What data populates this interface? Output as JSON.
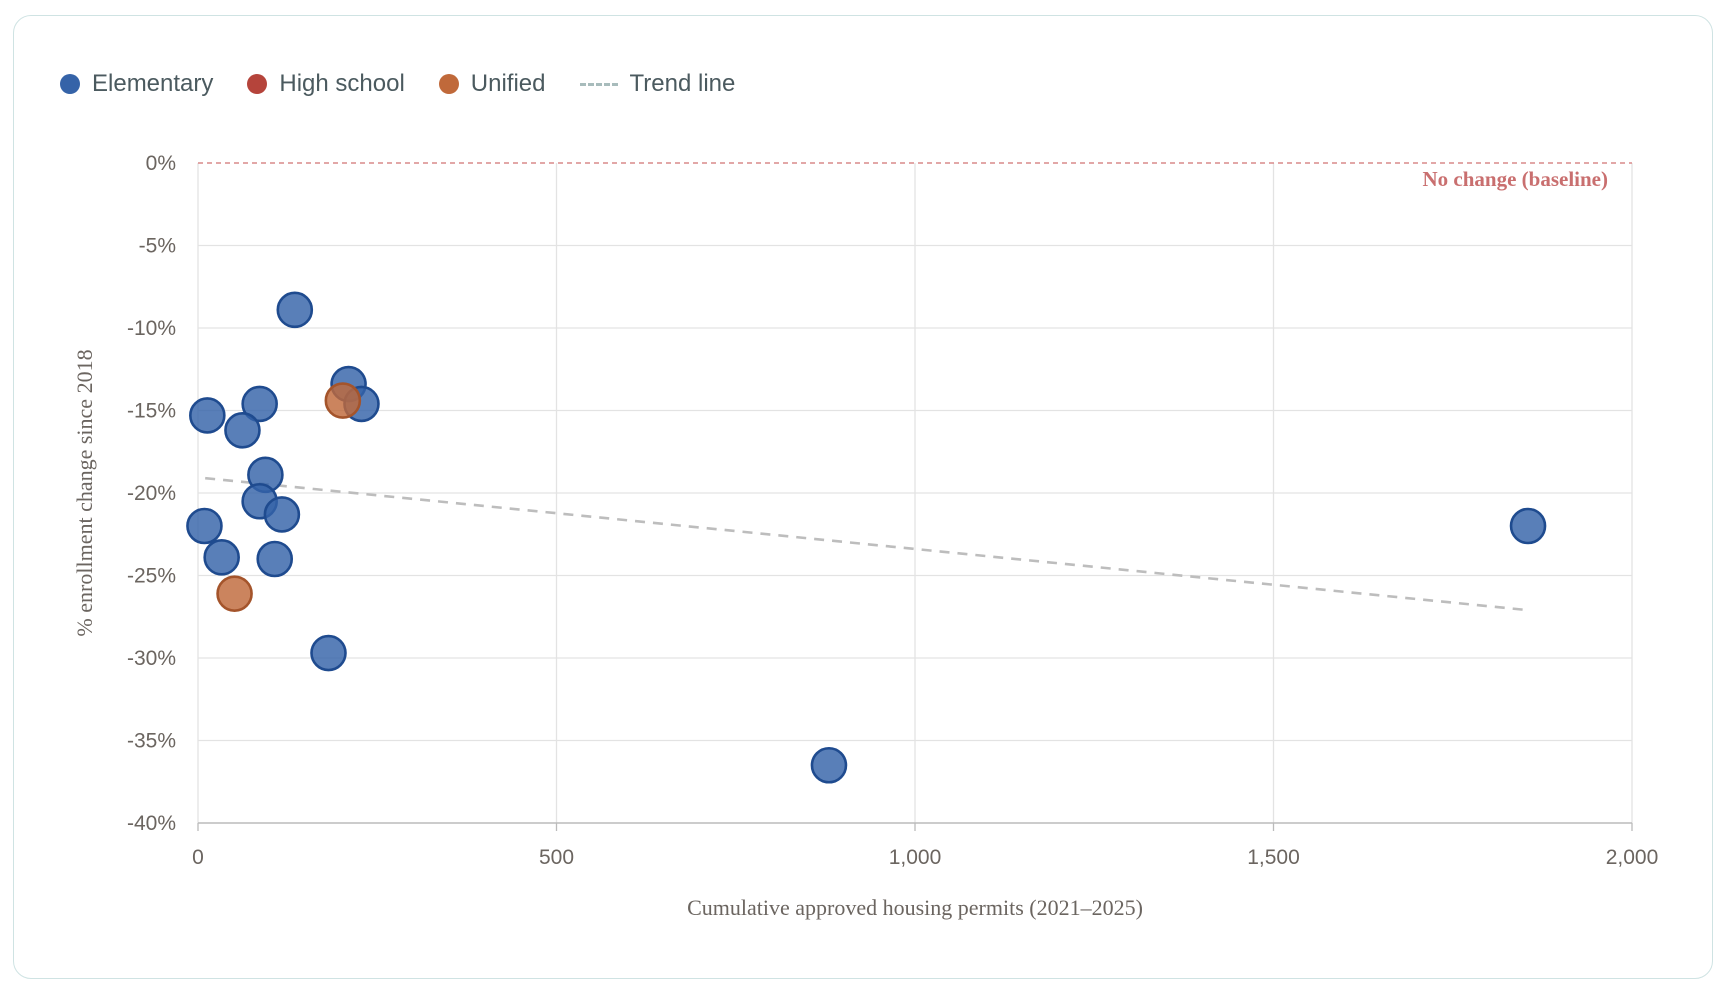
{
  "legend": {
    "elementary": "Elementary",
    "high_school": "High school",
    "unified": "Unified",
    "trend_line": "Trend line"
  },
  "colors": {
    "elementary": "#3563a8",
    "elementary_stroke": "#1f4b8f",
    "high_school": "#b5443b",
    "unified": "#c0693a",
    "unified_stroke": "#a4542b",
    "trend": "#bdbdbd",
    "baseline": "#d98a8a",
    "grid": "#e3e3e3",
    "card_border": "#cfe3e3"
  },
  "chart_data": {
    "type": "scatter",
    "title": "",
    "xlabel": "Cumulative approved housing permits (2021–2025)",
    "ylabel": "% enrollment change since 2018",
    "xlim": [
      0,
      2000
    ],
    "ylim": [
      -40,
      0
    ],
    "x_ticks": [
      0,
      500,
      1000,
      1500,
      2000
    ],
    "x_tick_labels": [
      "0",
      "500",
      "1,000",
      "1,500",
      "2,000"
    ],
    "y_ticks": [
      0,
      -5,
      -10,
      -15,
      -20,
      -25,
      -30,
      -35,
      -40
    ],
    "y_tick_labels": [
      "0%",
      "-5%",
      "-10%",
      "-15%",
      "-20%",
      "-25%",
      "-30%",
      "-35%",
      "-40%"
    ],
    "grid": true,
    "legend_position": "top-left",
    "baseline": {
      "y": 0,
      "label": "No change (baseline)"
    },
    "trend_line": {
      "name": "Trend line",
      "x": [
        10,
        1855
      ],
      "y": [
        -19.1,
        -27.1
      ]
    },
    "series": [
      {
        "name": "Elementary",
        "points": [
          {
            "x": 135,
            "y": -8.9
          },
          {
            "x": 210,
            "y": -13.4
          },
          {
            "x": 228,
            "y": -14.6
          },
          {
            "x": 86,
            "y": -14.6
          },
          {
            "x": 13,
            "y": -15.3
          },
          {
            "x": 62,
            "y": -16.2
          },
          {
            "x": 94,
            "y": -18.9
          },
          {
            "x": 86,
            "y": -20.5
          },
          {
            "x": 117,
            "y": -21.3
          },
          {
            "x": 9,
            "y": -22.0
          },
          {
            "x": 33,
            "y": -23.9
          },
          {
            "x": 107,
            "y": -24.0
          },
          {
            "x": 182,
            "y": -29.7
          },
          {
            "x": 880,
            "y": -36.5
          },
          {
            "x": 1855,
            "y": -22.0
          }
        ]
      },
      {
        "name": "High school",
        "points": []
      },
      {
        "name": "Unified",
        "points": [
          {
            "x": 202,
            "y": -14.4
          },
          {
            "x": 51,
            "y": -26.1
          }
        ]
      }
    ]
  }
}
